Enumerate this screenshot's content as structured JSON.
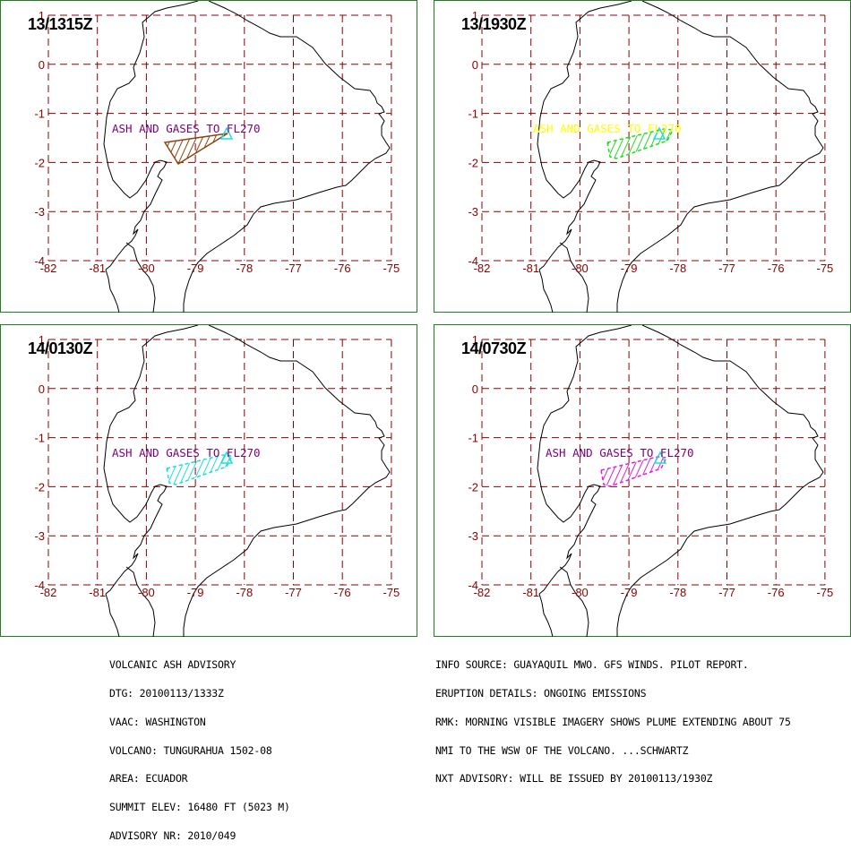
{
  "panels": [
    {
      "id": "p1",
      "time": "13/1315Z",
      "label": "ASH AND GASES TO FL270",
      "label_color": "#7a007a",
      "plume_color": "#8b4513",
      "plume_style": "outline"
    },
    {
      "id": "p2",
      "time": "13/1930Z",
      "label": "ASH AND GASES TO FL270",
      "label_color": "#ffff00",
      "plume_color": "#22dd22",
      "plume_style": "hatched"
    },
    {
      "id": "p3",
      "time": "14/0130Z",
      "label": "ASH AND GASES TO FL270",
      "label_color": "#7a007a",
      "plume_color": "#22dddd",
      "plume_style": "hatched"
    },
    {
      "id": "p4",
      "time": "14/0730Z",
      "label": "ASH AND GASES TO FL270",
      "label_color": "#7a007a",
      "plume_color": "#dd22dd",
      "plume_style": "hatched"
    }
  ],
  "map": {
    "lon_ticks": [
      "-82",
      "-81",
      "-80",
      "-79",
      "-78",
      "-77",
      "-76",
      "-75"
    ],
    "lat_ticks": [
      "1",
      "0",
      "-1",
      "-2",
      "-3",
      "-4"
    ],
    "volcano_marker_color": "#22dddd",
    "grid_color": "#8b0000",
    "tick_color": "#8b0000"
  },
  "advisory_left": [
    "VOLCANIC ASH ADVISORY",
    "DTG: 20100113/1333Z",
    "VAAC: WASHINGTON",
    "VOLCANO: TUNGURAHUA 1502-08",
    "AREA: ECUADOR",
    "SUMMIT ELEV: 16480 FT (5023 M)",
    "ADVISORY NR: 2010/049"
  ],
  "advisory_right": [
    "INFO SOURCE: GUAYAQUIL MWO. GFS WINDS. PILOT REPORT.",
    "ERUPTION DETAILS: ONGOING EMISSIONS",
    "RMK: MORNING VISIBLE IMAGERY SHOWS PLUME EXTENDING ABOUT 75",
    "NMI TO THE WSW OF THE VOLCANO. ...SCHWARTZ",
    "NXT ADVISORY: WILL BE ISSUED BY 20100113/1930Z"
  ]
}
